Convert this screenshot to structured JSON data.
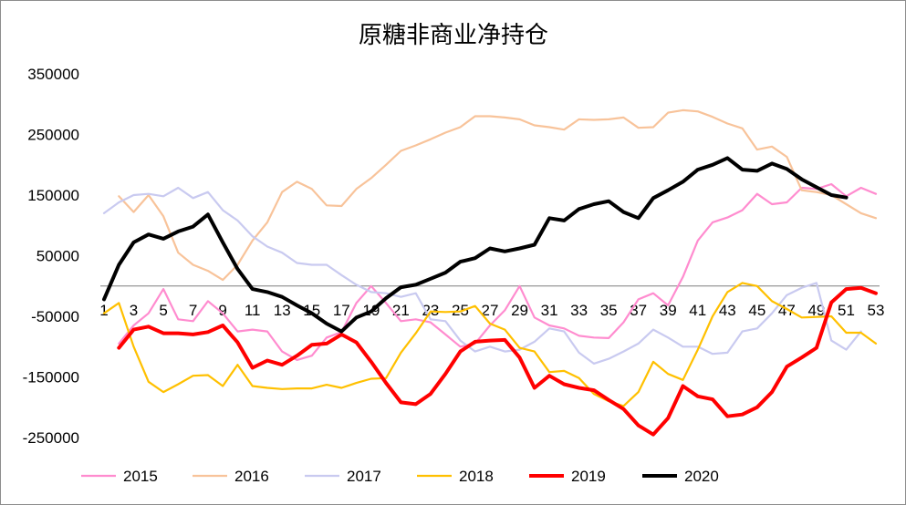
{
  "chart_data": {
    "type": "line",
    "title": "原糖非商业净持仓",
    "xlabel": "",
    "ylabel": "",
    "ylim": [
      -250000,
      350000
    ],
    "yticks": [
      350000,
      250000,
      150000,
      50000,
      -50000,
      -150000,
      -250000
    ],
    "ytick_labels": [
      "350000",
      "250000",
      "150000",
      "50000",
      "-50000",
      "-150000",
      "-250000"
    ],
    "xlim": [
      1,
      53
    ],
    "xticks": [
      1,
      3,
      5,
      7,
      9,
      11,
      13,
      15,
      17,
      19,
      21,
      23,
      25,
      27,
      29,
      31,
      33,
      35,
      37,
      39,
      41,
      43,
      45,
      47,
      49,
      51,
      53
    ],
    "xtick_labels": [
      "1",
      "3",
      "5",
      "7",
      "9",
      "11",
      "13",
      "15",
      "17",
      "19",
      "21",
      "23",
      "25",
      "27",
      "29",
      "31",
      "33",
      "35",
      "37",
      "39",
      "41",
      "43",
      "45",
      "47",
      "49",
      "51",
      "53"
    ],
    "grid": false,
    "legend_position": "bottom",
    "series": [
      {
        "name": "2015",
        "color": "#ff8ccf",
        "width": 2.2,
        "x": [
          2,
          3,
          4,
          5,
          6,
          7,
          8,
          9,
          10,
          11,
          12,
          13,
          14,
          15,
          16,
          17,
          18,
          19,
          20,
          21,
          22,
          23,
          24,
          25,
          26,
          27,
          28,
          29,
          30,
          31,
          32,
          33,
          34,
          35,
          36,
          37,
          38,
          39,
          40,
          41,
          42,
          43,
          44,
          45,
          46,
          47,
          48,
          49,
          50,
          51,
          52,
          53
        ],
        "y": [
          -95000,
          -65000,
          -45000,
          -5000,
          -55000,
          -58000,
          -25000,
          -45000,
          -75000,
          -72000,
          -75000,
          -108000,
          -122000,
          -115000,
          -85000,
          -76000,
          -28000,
          0,
          -28000,
          -58000,
          -55000,
          -60000,
          -80000,
          -100000,
          -95000,
          -65000,
          -40000,
          0,
          -52000,
          -65000,
          -70000,
          -82000,
          -85000,
          -86000,
          -60000,
          -22000,
          -12000,
          -32000,
          15000,
          75000,
          105000,
          113000,
          125000,
          152000,
          135000,
          138000,
          162000,
          160000,
          168000,
          148000,
          162000,
          152000
        ]
      },
      {
        "name": "2016",
        "color": "#f8c39a",
        "width": 2.2,
        "x": [
          2,
          3,
          4,
          5,
          6,
          7,
          8,
          9,
          10,
          11,
          12,
          13,
          14,
          15,
          16,
          17,
          18,
          19,
          20,
          21,
          22,
          23,
          24,
          25,
          26,
          27,
          28,
          29,
          30,
          31,
          32,
          33,
          34,
          35,
          36,
          37,
          38,
          39,
          40,
          41,
          42,
          43,
          44,
          45,
          46,
          47,
          48,
          49,
          50,
          51,
          52,
          53
        ],
        "y": [
          148000,
          122000,
          150000,
          115000,
          55000,
          35000,
          25000,
          10000,
          35000,
          75000,
          105000,
          155000,
          172000,
          160000,
          133000,
          132000,
          160000,
          178000,
          200000,
          223000,
          232000,
          242000,
          253000,
          262000,
          280000,
          280000,
          278000,
          275000,
          265000,
          262000,
          258000,
          275000,
          274000,
          275000,
          278000,
          261000,
          262000,
          286000,
          290000,
          288000,
          279000,
          268000,
          260000,
          225000,
          230000,
          213000,
          158000,
          155000,
          150000,
          135000,
          120000,
          112000
        ]
      },
      {
        "name": "2017",
        "color": "#c9caf0",
        "width": 2.2,
        "x": [
          1,
          2,
          3,
          4,
          5,
          6,
          7,
          8,
          9,
          10,
          11,
          12,
          13,
          14,
          15,
          16,
          17,
          18,
          19,
          20,
          21,
          22,
          23,
          24,
          25,
          26,
          27,
          28,
          29,
          30,
          31,
          32,
          33,
          34,
          35,
          36,
          37,
          38,
          39,
          40,
          41,
          42,
          43,
          44,
          45,
          46,
          47,
          48,
          49,
          50,
          51,
          52
        ],
        "y": [
          120000,
          138000,
          150000,
          152000,
          148000,
          162000,
          145000,
          155000,
          125000,
          108000,
          82000,
          65000,
          55000,
          38000,
          35000,
          35000,
          18000,
          2000,
          -10000,
          -12000,
          -18000,
          -12000,
          -55000,
          -58000,
          -90000,
          -108000,
          -100000,
          -108000,
          -105000,
          -92000,
          -70000,
          -75000,
          -110000,
          -128000,
          -120000,
          -108000,
          -95000,
          -72000,
          -85000,
          -100000,
          -100000,
          -112000,
          -110000,
          -75000,
          -70000,
          -45000,
          -15000,
          -3000,
          5000,
          -90000,
          -105000,
          -75000
        ]
      },
      {
        "name": "2018",
        "color": "#ffc000",
        "width": 2.2,
        "x": [
          1,
          2,
          3,
          4,
          5,
          6,
          7,
          8,
          9,
          10,
          11,
          12,
          13,
          14,
          15,
          16,
          17,
          18,
          19,
          20,
          21,
          22,
          23,
          24,
          25,
          26,
          27,
          28,
          29,
          30,
          31,
          32,
          33,
          34,
          35,
          36,
          37,
          38,
          39,
          40,
          41,
          42,
          43,
          44,
          45,
          46,
          47,
          48,
          49,
          50,
          51,
          52,
          53
        ],
        "y": [
          -45000,
          -28000,
          -100000,
          -158000,
          -175000,
          -162000,
          -148000,
          -147000,
          -165000,
          -130000,
          -165000,
          -168000,
          -170000,
          -169000,
          -169000,
          -163000,
          -168000,
          -160000,
          -153000,
          -152000,
          -110000,
          -78000,
          -42000,
          -43000,
          -42000,
          -33000,
          -62000,
          -72000,
          -102000,
          -108000,
          -142000,
          -140000,
          -152000,
          -178000,
          -190000,
          -198000,
          -175000,
          -125000,
          -145000,
          -155000,
          -105000,
          -50000,
          -10000,
          5000,
          0,
          -25000,
          -38000,
          -52000,
          -51000,
          -50000,
          -77000,
          -77000,
          -95000
        ]
      },
      {
        "name": "2019",
        "color": "#ff0000",
        "width": 4,
        "x": [
          2,
          3,
          4,
          5,
          6,
          7,
          8,
          9,
          10,
          11,
          12,
          13,
          14,
          15,
          16,
          17,
          18,
          19,
          20,
          21,
          22,
          23,
          24,
          25,
          26,
          27,
          28,
          29,
          30,
          31,
          32,
          33,
          34,
          35,
          36,
          37,
          38,
          39,
          40,
          41,
          42,
          43,
          44,
          45,
          46,
          47,
          48,
          49,
          50,
          51,
          52,
          53
        ],
        "y": [
          -102000,
          -72000,
          -67000,
          -78000,
          -78000,
          -80000,
          -76000,
          -65000,
          -93000,
          -135000,
          -123000,
          -130000,
          -115000,
          -97000,
          -95000,
          -80000,
          -93000,
          -125000,
          -160000,
          -192000,
          -195000,
          -178000,
          -145000,
          -108000,
          -92000,
          -90000,
          -89000,
          -118000,
          -168000,
          -148000,
          -162000,
          -168000,
          -172000,
          -188000,
          -203000,
          -230000,
          -245000,
          -218000,
          -165000,
          -182000,
          -187000,
          -215000,
          -212000,
          -200000,
          -175000,
          -133000,
          -118000,
          -102000,
          -27000,
          -5000,
          -3000,
          -12000
        ]
      },
      {
        "name": "2020",
        "color": "#000000",
        "width": 4,
        "x": [
          1,
          2,
          3,
          4,
          5,
          6,
          7,
          8,
          9,
          10,
          11,
          12,
          13,
          14,
          15,
          16,
          17,
          18,
          19,
          20,
          21,
          22,
          23,
          24,
          25,
          26,
          27,
          28,
          29,
          30,
          31,
          32,
          33,
          34,
          35,
          36,
          37,
          38,
          39,
          40,
          41,
          42,
          43,
          44,
          45,
          46,
          47,
          48,
          49,
          50,
          51
        ],
        "y": [
          -22000,
          35000,
          72000,
          85000,
          78000,
          90000,
          98000,
          118000,
          72000,
          28000,
          -5000,
          -10000,
          -18000,
          -32000,
          -45000,
          -62000,
          -75000,
          -52000,
          -42000,
          -20000,
          -2000,
          2000,
          12000,
          22000,
          40000,
          46000,
          62000,
          57000,
          62000,
          68000,
          112000,
          108000,
          127000,
          135000,
          140000,
          122000,
          112000,
          145000,
          158000,
          172000,
          192000,
          200000,
          211000,
          192000,
          190000,
          202000,
          193000,
          176000,
          163000,
          150000,
          146000
        ]
      }
    ]
  }
}
